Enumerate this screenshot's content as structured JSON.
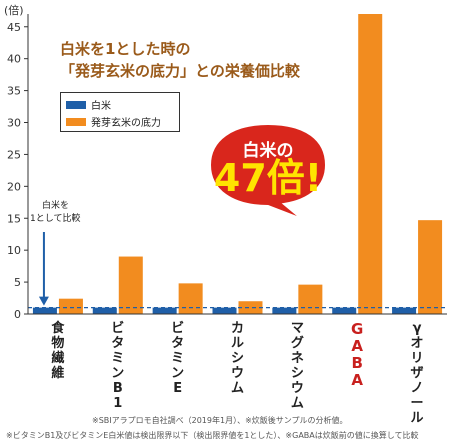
{
  "unit_label": "(倍)",
  "title_line1": "白米を1とした時の",
  "title_line2": "「発芽玄米の底力」との栄養価比較",
  "callout": {
    "line1": "白米の",
    "line2": "47倍!"
  },
  "annotation": {
    "line1": "白米を",
    "line2": "1として比較"
  },
  "footnotes": [
    "※SBIアラプロモ自社調べ（2019年1月）、※炊飯後サンプルの分析値。",
    "※ビタミンB1及びビタミンE白米値は検出限界以下（検出限界値を1とした）、※GABAは炊飯前の値に換算して比較"
  ],
  "chart_data": {
    "type": "bar",
    "categories": [
      "食物繊維",
      "ビタミンB1",
      "ビタミンE",
      "カルシウム",
      "マグネシウム",
      "GABA",
      "γオリザノール"
    ],
    "series": [
      {
        "name": "白米",
        "color": "#1f5fa8",
        "values": [
          1,
          1,
          1,
          1,
          1,
          1,
          1
        ]
      },
      {
        "name": "発芽玄米の底力",
        "color": "#f28c1f",
        "values": [
          2.4,
          9,
          4.8,
          2,
          4.6,
          47,
          14.7
        ]
      }
    ],
    "ylim": [
      0,
      47
    ],
    "yticks": [
      0,
      5,
      10,
      15,
      20,
      25,
      30,
      35,
      40,
      45
    ],
    "reference_line": 1,
    "highlight_category": "GABA",
    "grid": false,
    "legend_position": "top-left"
  }
}
